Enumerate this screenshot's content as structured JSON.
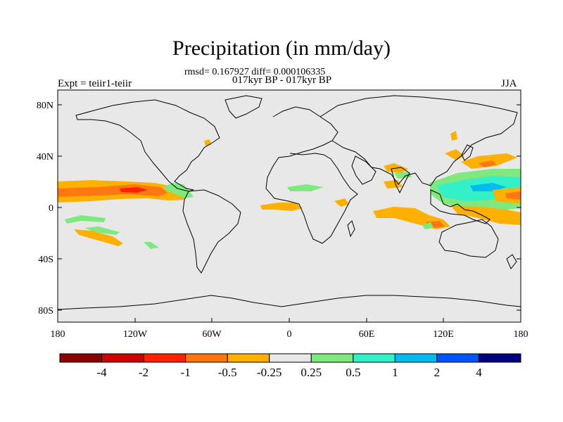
{
  "title": "Precipitation (in mm/day)",
  "stats_line": "rmsd= 0.167927 diff= 0.000106335",
  "dates_line": "017kyr BP - 017kyr BP",
  "experiment": "Expt = teiir1-teiir",
  "season": "JJA",
  "lat_ticks": [
    "80N",
    "40N",
    "0",
    "40S",
    "80S"
  ],
  "lon_ticks": [
    "180",
    "120W",
    "60W",
    "0",
    "60E",
    "120E",
    "180"
  ],
  "colorbar": {
    "colors": [
      "#8b0000",
      "#cc0000",
      "#ff2200",
      "#ff7711",
      "#ffb000",
      "#e8e8e8",
      "#7fe87f",
      "#33f0c8",
      "#00bbee",
      "#0055ff",
      "#000080"
    ],
    "labels": [
      "-4",
      "-2",
      "-1",
      "-0.5",
      "-0.25",
      "0.25",
      "0.5",
      "1",
      "2",
      "4"
    ]
  },
  "chart_data": {
    "type": "heatmap",
    "title": "Precipitation (in mm/day)",
    "variable": "Precipitation difference",
    "units": "mm/day",
    "experiment": "teiir1-teiir",
    "season": "JJA",
    "period": "017kyr BP - 017kyr BP",
    "rmsd": 0.167927,
    "diff": 0.000106335,
    "lon_range": [
      -180,
      180
    ],
    "lat_range": [
      -90,
      90
    ],
    "contour_levels": [
      -4,
      -2,
      -1,
      -0.5,
      -0.25,
      0.25,
      0.5,
      1,
      2,
      4
    ]
  }
}
